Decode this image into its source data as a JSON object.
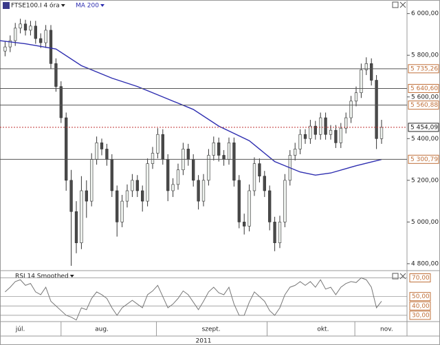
{
  "chart_data": [
    {
      "type": "candlestick",
      "title": "FTSE100.I 4 óra",
      "ylim": [
        4770,
        6065
      ],
      "yticks": [
        {
          "value": 6000,
          "label": "6 000,00"
        },
        {
          "value": 5800,
          "label": "5 800,00"
        },
        {
          "value": 5600,
          "label": "5 600,00"
        },
        {
          "value": 5400,
          "label": "5 400,00"
        },
        {
          "value": 5200,
          "label": "5 200,00"
        },
        {
          "value": 5000,
          "label": "5 000,00"
        },
        {
          "value": 4800,
          "label": "4 800,00"
        }
      ],
      "open": [
        5820,
        5840,
        5870,
        5930,
        5950,
        5920,
        5940,
        5880,
        5860,
        5920,
        5760,
        5650,
        5500,
        5200,
        5050,
        4900,
        5150,
        5100,
        5300,
        5380,
        5350,
        5300,
        5150,
        5000,
        5100,
        5150,
        5200,
        5150,
        5100,
        5280,
        5330,
        5420,
        5300,
        5150,
        5180,
        5250,
        5350,
        5300,
        5200,
        5100,
        5200,
        5320,
        5380,
        5320,
        5300,
        5380,
        5200,
        5000,
        4980,
        5150,
        5280,
        5220,
        5150,
        5000,
        4900,
        5000,
        5200,
        5320,
        5350,
        5420,
        5400,
        5460,
        5420,
        5500,
        5420,
        5440,
        5380,
        5450,
        5500,
        5580,
        5620,
        5730,
        5760,
        5680,
        5400
      ],
      "high": [
        5865,
        5895,
        5955,
        5975,
        5970,
        5965,
        5965,
        5905,
        5945,
        5945,
        5785,
        5675,
        5525,
        5250,
        5100,
        5220,
        5200,
        5330,
        5410,
        5400,
        5375,
        5325,
        5175,
        5130,
        5180,
        5230,
        5225,
        5175,
        5305,
        5360,
        5450,
        5445,
        5325,
        5210,
        5280,
        5380,
        5375,
        5325,
        5225,
        5230,
        5350,
        5410,
        5405,
        5345,
        5405,
        5405,
        5225,
        5040,
        5180,
        5310,
        5305,
        5245,
        5175,
        5025,
        5030,
        5230,
        5345,
        5380,
        5445,
        5445,
        5490,
        5485,
        5525,
        5525,
        5465,
        5465,
        5475,
        5525,
        5605,
        5650,
        5760,
        5790,
        5785,
        5705,
        5490
      ],
      "low": [
        5795,
        5815,
        5845,
        5905,
        5895,
        5895,
        5855,
        5835,
        5835,
        5735,
        5625,
        5475,
        5150,
        4790,
        4850,
        4870,
        5020,
        5075,
        5275,
        5320,
        5270,
        5120,
        4930,
        4975,
        5070,
        5120,
        5120,
        5050,
        5075,
        5255,
        5305,
        5275,
        5100,
        5120,
        5155,
        5225,
        5270,
        5170,
        5060,
        5075,
        5175,
        5295,
        5290,
        5270,
        5275,
        5170,
        4970,
        4940,
        4955,
        5125,
        5190,
        5120,
        4960,
        4860,
        4875,
        4975,
        5175,
        5295,
        5325,
        5375,
        5375,
        5395,
        5395,
        5395,
        5395,
        5355,
        5355,
        5425,
        5475,
        5555,
        5595,
        5705,
        5655,
        5350,
        5375
      ],
      "close": [
        5840,
        5870,
        5930,
        5950,
        5920,
        5940,
        5880,
        5860,
        5920,
        5760,
        5650,
        5500,
        5200,
        5050,
        4900,
        5150,
        5100,
        5300,
        5380,
        5350,
        5300,
        5150,
        5000,
        5100,
        5150,
        5200,
        5150,
        5100,
        5280,
        5330,
        5420,
        5300,
        5150,
        5180,
        5250,
        5350,
        5300,
        5200,
        5100,
        5200,
        5320,
        5380,
        5320,
        5300,
        5380,
        5200,
        5000,
        4980,
        5150,
        5280,
        5220,
        5150,
        5000,
        4900,
        5000,
        5200,
        5320,
        5350,
        5420,
        5400,
        5460,
        5420,
        5500,
        5420,
        5440,
        5380,
        5450,
        5500,
        5580,
        5620,
        5730,
        5760,
        5680,
        5400,
        5454
      ],
      "up_color": "#eef2ee",
      "down_color": "#4a4a4a",
      "outline_color": "#333333",
      "series": [
        {
          "name": "MA 200",
          "color": "#2e2eb0",
          "x": [
            -1,
            4,
            10,
            15,
            21,
            26,
            31,
            37,
            42,
            48,
            53,
            58,
            61,
            64,
            69,
            74
          ],
          "values": [
            5870,
            5855,
            5830,
            5750,
            5690,
            5650,
            5600,
            5540,
            5460,
            5390,
            5290,
            5240,
            5225,
            5235,
            5270,
            5300
          ]
        }
      ],
      "levels": [
        {
          "value": 5735.26,
          "label": "5 735,26",
          "color": "#c0703a",
          "line": "#555555",
          "style": "solid"
        },
        {
          "value": 5640.6,
          "label": "5 640,60",
          "color": "#c0703a",
          "line": "#555555",
          "style": "solid"
        },
        {
          "value": 5560.88,
          "label": "5 560,88",
          "color": "#c0703a",
          "line": "#555555",
          "style": "solid"
        },
        {
          "value": 5454.09,
          "label": "5 454,09",
          "color": "#222222",
          "line": "#c03030",
          "style": "dotted"
        },
        {
          "value": 5300.79,
          "label": "5 300,79",
          "color": "#c0703a",
          "line": "#555555",
          "style": "solid"
        }
      ]
    },
    {
      "type": "line",
      "title": "RSI 14 Smoothed",
      "color": "#777777",
      "ylim": [
        24,
        77
      ],
      "yticks": [
        {
          "value": 70,
          "label": "70,00"
        },
        {
          "value": 50,
          "label": "50,00"
        },
        {
          "value": 40,
          "label": "40,00"
        },
        {
          "value": 30,
          "label": "30,00"
        }
      ],
      "values": [
        55,
        60,
        66,
        68,
        62,
        64,
        55,
        52,
        60,
        45,
        40,
        35,
        30,
        28,
        25,
        38,
        36,
        48,
        55,
        52,
        48,
        38,
        30,
        38,
        42,
        46,
        42,
        38,
        52,
        56,
        62,
        50,
        38,
        42,
        48,
        56,
        52,
        44,
        36,
        45,
        55,
        60,
        54,
        52,
        60,
        42,
        30,
        30,
        44,
        55,
        50,
        45,
        35,
        30,
        38,
        52,
        60,
        62,
        66,
        62,
        66,
        60,
        68,
        58,
        60,
        52,
        60,
        64,
        66,
        65,
        70,
        68,
        60,
        38,
        45
      ]
    }
  ],
  "x_axis": {
    "xlim": [
      -1,
      79
    ],
    "xticks": [
      {
        "value": 3,
        "label": "júl."
      },
      {
        "value": 19,
        "label": "aug."
      },
      {
        "value": 40.5,
        "label": "szept."
      },
      {
        "value": 62.5,
        "label": "okt."
      },
      {
        "value": 75,
        "label": "nov."
      }
    ],
    "label": "2011"
  }
}
